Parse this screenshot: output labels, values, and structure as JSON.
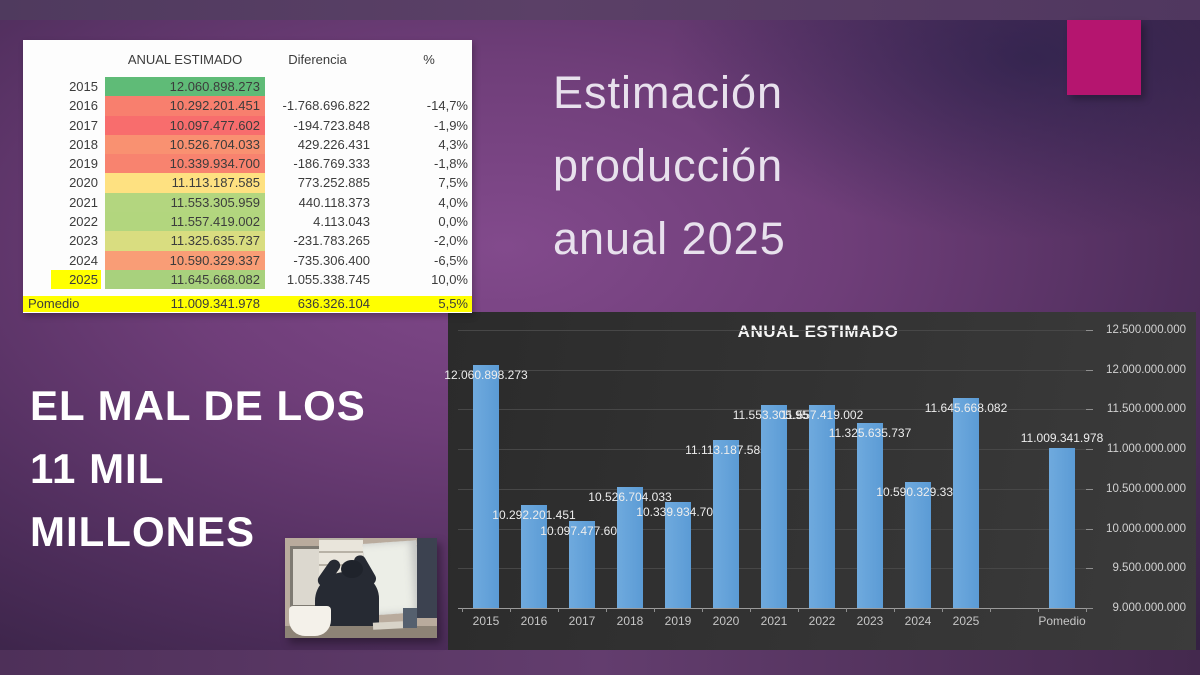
{
  "slide": {
    "title": "Estimación\nproducción\nanual 2025",
    "headline": "EL MAL DE LOS\n11 MIL\nMILLONES",
    "accent_color": "#b5156f"
  },
  "table": {
    "headers": {
      "value": "ANUAL ESTIMADO",
      "diff": "Diferencia",
      "pct": "%"
    },
    "rows": [
      {
        "year": "2015",
        "value": "12.060.898.273",
        "diff": "",
        "pct": "",
        "color": "#5fbb77",
        "year_highlight": false
      },
      {
        "year": "2016",
        "value": "10.292.201.451",
        "diff": "-1.768.696.822",
        "pct": "-14,7%",
        "color": "#f87f6e",
        "year_highlight": false
      },
      {
        "year": "2017",
        "value": "10.097.477.602",
        "diff": "-194.723.848",
        "pct": "-1,9%",
        "color": "#f86d6d",
        "year_highlight": false
      },
      {
        "year": "2018",
        "value": "10.526.704.033",
        "diff": "429.226.431",
        "pct": "4,3%",
        "color": "#f99171",
        "year_highlight": false
      },
      {
        "year": "2019",
        "value": "10.339.934.700",
        "diff": "-186.769.333",
        "pct": "-1,8%",
        "color": "#f8836f",
        "year_highlight": false
      },
      {
        "year": "2020",
        "value": "11.113.187.585",
        "diff": "773.252.885",
        "pct": "7,5%",
        "color": "#fee181",
        "year_highlight": false
      },
      {
        "year": "2021",
        "value": "11.553.305.959",
        "diff": "440.118.373",
        "pct": "4,0%",
        "color": "#b3d67f",
        "year_highlight": false
      },
      {
        "year": "2022",
        "value": "11.557.419.002",
        "diff": "4.113.043",
        "pct": "0,0%",
        "color": "#b2d67e",
        "year_highlight": false
      },
      {
        "year": "2023",
        "value": "11.325.635.737",
        "diff": "-231.783.265",
        "pct": "-2,0%",
        "color": "#d9dd80",
        "year_highlight": false
      },
      {
        "year": "2024",
        "value": "10.590.329.337",
        "diff": "-735.306.400",
        "pct": "-6,5%",
        "color": "#f99d76",
        "year_highlight": false
      },
      {
        "year": "2025",
        "value": "11.645.668.082",
        "diff": "1.055.338.745",
        "pct": "10,0%",
        "color": "#a8d17d",
        "year_highlight": true
      }
    ],
    "summary": {
      "label": "Pomedio",
      "value": "11.009.341.978",
      "diff": "636.326.104",
      "pct": "5,5%"
    },
    "highlight_color": "#ffff00"
  },
  "chart_data": {
    "type": "bar",
    "title": "ANUAL ESTIMADO",
    "categories": [
      "2015",
      "2016",
      "2017",
      "2018",
      "2019",
      "2020",
      "2021",
      "2022",
      "2023",
      "2024",
      "2025",
      "Pomedio"
    ],
    "values": [
      12060898273,
      10292201451,
      10097477602,
      10526704033,
      10339934700,
      11113187585,
      11553305959,
      11557419002,
      11325635737,
      10590329337,
      11645668082,
      11009341978
    ],
    "data_labels": [
      "12.060.898.273",
      "10.292.201.451",
      "10.097.477.602",
      "10.526.704.033",
      "10.339.934.700",
      "11.113.187.585",
      "11.553.305.959",
      "11.557.419.002",
      "11.325.635.737",
      "10.590.329.337",
      "11.645.668.082",
      "11.009.341.978"
    ],
    "label_placement": [
      "in",
      "in",
      "in",
      "in",
      "in",
      "in",
      "in",
      "in",
      "in",
      "in",
      "in",
      "out"
    ],
    "gap_before_last": true,
    "xlabel": "",
    "ylabel": "",
    "ylim": [
      9000000000,
      12500000000
    ],
    "ytick_step": 500000000,
    "ytick_labels": [
      "12.500.000.000",
      "12.000.000.000",
      "11.500.000.000",
      "11.000.000.000",
      "10.500.000.000",
      "10.000.000.000",
      "9.500.000.000",
      "9.000.000.000"
    ],
    "yaxis_side": "right",
    "grid": true,
    "legend": "none",
    "bar_color": "#5b9bd5",
    "panel_bg": "#323232"
  }
}
